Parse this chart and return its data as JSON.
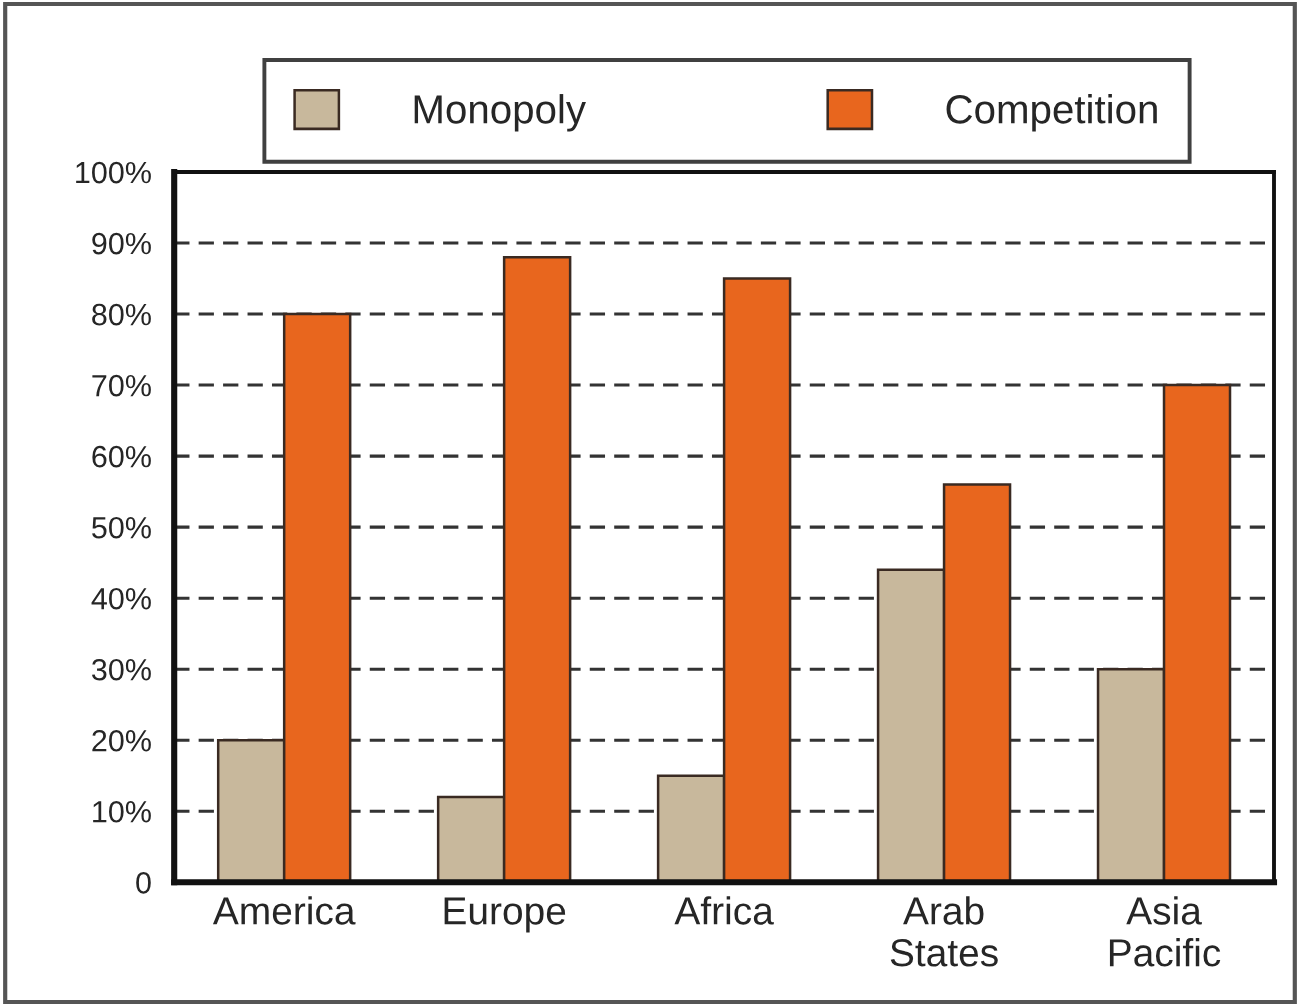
{
  "chart_data": {
    "type": "bar",
    "categories": [
      "America",
      "Europe",
      "Africa",
      "Arab\nStates",
      "Asia\nPacific"
    ],
    "series": [
      {
        "name": "Monopoly",
        "color": "#c8b89c",
        "values": [
          20,
          12,
          15,
          44,
          30
        ]
      },
      {
        "name": "Competition",
        "color": "#e8661e",
        "values": [
          80,
          88,
          85,
          56,
          70
        ]
      }
    ],
    "ylim": [
      0,
      100
    ],
    "yticks": [
      0,
      {
        "value": 10,
        "label": "10%"
      },
      {
        "value": 20,
        "label": "20%"
      },
      {
        "value": 30,
        "label": "30%"
      },
      {
        "value": 40,
        "label": "40%"
      },
      {
        "value": 50,
        "label": "50%"
      },
      {
        "value": 60,
        "label": "60%"
      },
      {
        "value": 70,
        "label": "70%"
      },
      {
        "value": 80,
        "label": "80%"
      },
      {
        "value": 90,
        "label": "90%"
      },
      {
        "value": 100,
        "label": "100%"
      }
    ],
    "grid": "y",
    "legend": "top"
  }
}
